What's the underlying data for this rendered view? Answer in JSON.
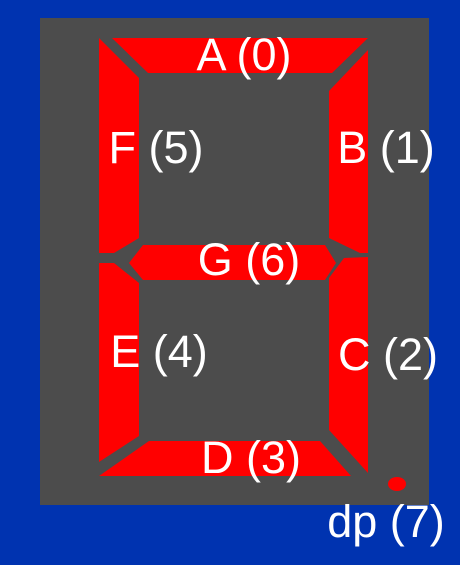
{
  "colors": {
    "background": "#0033b0",
    "panel": "#4c4c4c",
    "segment_on": "#ff0000",
    "label": "#ffffff"
  },
  "segments": [
    {
      "id": "A",
      "label": "A (0)"
    },
    {
      "id": "B",
      "label": "B (1)"
    },
    {
      "id": "C",
      "label": "C (2)"
    },
    {
      "id": "D",
      "label": "D (3)"
    },
    {
      "id": "E",
      "label": "E (4)"
    },
    {
      "id": "F",
      "label": "F (5)"
    },
    {
      "id": "G",
      "label": "G (6)"
    },
    {
      "id": "DP",
      "label": "dp (7)"
    }
  ]
}
